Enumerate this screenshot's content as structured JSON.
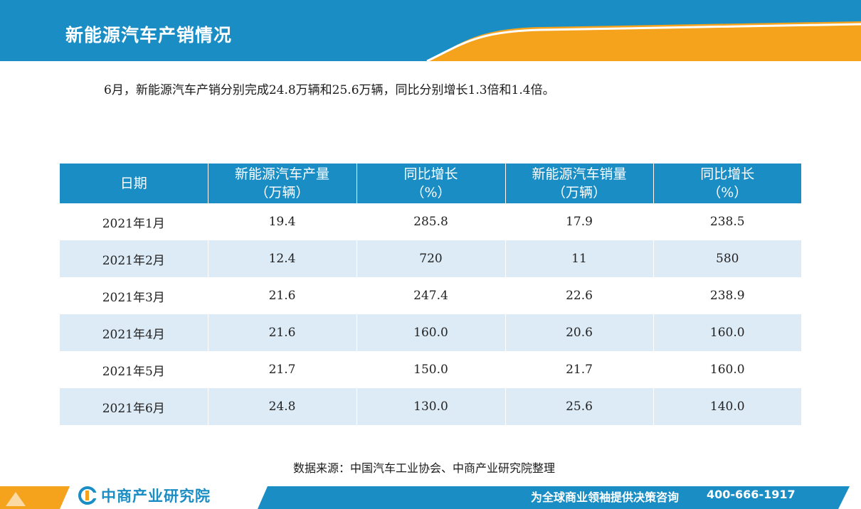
{
  "header": {
    "title": "新能源汽车产销情况",
    "colors": {
      "blue": "#1a8ec4",
      "orange": "#f5a21c"
    }
  },
  "summary": "6月，新能源汽车产销分别完成24.8万辆和25.6万辆，同比分别增长1.3倍和1.4倍。",
  "table": {
    "headers": [
      {
        "line1": "日期",
        "line2": ""
      },
      {
        "line1": "新能源汽车产量",
        "line2": "（万辆）"
      },
      {
        "line1": "同比增长",
        "line2": "（%）"
      },
      {
        "line1": "新能源汽车销量",
        "line2": "（万辆）"
      },
      {
        "line1": "同比增长",
        "line2": "（%）"
      }
    ],
    "rows": [
      [
        "2021年1月",
        "19.4",
        "285.8",
        "17.9",
        "238.5"
      ],
      [
        "2021年2月",
        "12.4",
        "720",
        "11",
        "580"
      ],
      [
        "2021年3月",
        "21.6",
        "247.4",
        "22.6",
        "238.9"
      ],
      [
        "2021年4月",
        "21.6",
        "160.0",
        "20.6",
        "160.0"
      ],
      [
        "2021年5月",
        "21.7",
        "150.0",
        "21.7",
        "160.0"
      ],
      [
        "2021年6月",
        "24.8",
        "130.0",
        "25.6",
        "140.0"
      ]
    ],
    "row_alt_color": "#ddebf7"
  },
  "source": "数据来源：中国汽车工业协会、中商产业研究院整理",
  "footer": {
    "logo_text": "中商产业研究院",
    "slogan": "为全球商业领袖提供决策咨询",
    "phone": "400-666-1917"
  }
}
